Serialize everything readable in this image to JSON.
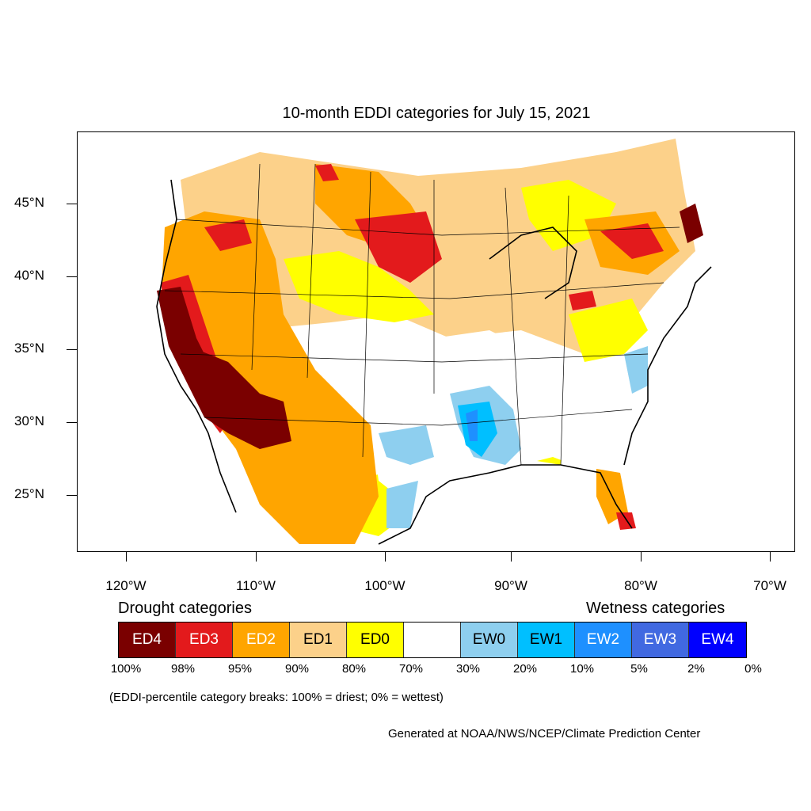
{
  "title": "10-month EDDI categories for July 15, 2021",
  "axes": {
    "lat_labels": [
      "45°N",
      "40°N",
      "35°N",
      "30°N",
      "25°N"
    ],
    "lon_labels": [
      "120°W",
      "110°W",
      "100°W",
      "90°W",
      "80°W",
      "70°W"
    ]
  },
  "legend": {
    "drought_heading": "Drought categories",
    "wetness_heading": "Wetness categories",
    "categories": [
      {
        "label": "ED4",
        "color": "#7a0000",
        "text_color": "#ffffff"
      },
      {
        "label": "ED3",
        "color": "#e31a1c",
        "text_color": "#ffffff"
      },
      {
        "label": "ED2",
        "color": "#ffa500",
        "text_color": "#ffffff"
      },
      {
        "label": "ED1",
        "color": "#fcd18a",
        "text_color": "#000000"
      },
      {
        "label": "ED0",
        "color": "#ffff00",
        "text_color": "#000000"
      },
      {
        "label": "",
        "color": "#ffffff",
        "text_color": "#000000"
      },
      {
        "label": "EW0",
        "color": "#8ecfef",
        "text_color": "#000000"
      },
      {
        "label": "EW1",
        "color": "#00bfff",
        "text_color": "#000000"
      },
      {
        "label": "EW2",
        "color": "#1e90ff",
        "text_color": "#ffffff"
      },
      {
        "label": "EW3",
        "color": "#4169e1",
        "text_color": "#ffffff"
      },
      {
        "label": "EW4",
        "color": "#0000ff",
        "text_color": "#ffffff"
      }
    ],
    "breaks": [
      "100%",
      "98%",
      "95%",
      "90%",
      "80%",
      "70%",
      "30%",
      "20%",
      "10%",
      "5%",
      "2%",
      "0%"
    ]
  },
  "note": "(EDDI-percentile category breaks: 100% = driest; 0% = wettest)",
  "credit": "Generated at NOAA/NWS/NCEP/Climate Prediction Center"
}
